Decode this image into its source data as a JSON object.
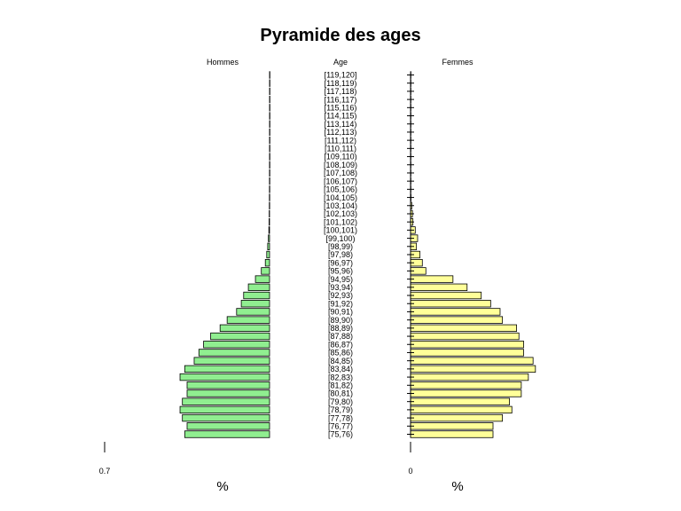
{
  "chart_data": {
    "type": "bar",
    "title": "Pyramide des ages",
    "headers": {
      "left": "Hommes",
      "center": "Age",
      "right": "Femmes"
    },
    "xlabel_left": "%",
    "xlabel_right": "%",
    "left_tick_label": "0.7",
    "right_tick_label": "0",
    "male_color": "#90EE90",
    "female_color": "#FFFF99",
    "categories": [
      "[75,76)",
      "[76,77)",
      "[77,78)",
      "[78,79)",
      "[79,80)",
      "[80,81)",
      "[81,82)",
      "[82,83)",
      "[83,84)",
      "[84,85)",
      "[85,86)",
      "[86,87)",
      "[87,88)",
      "[88,89)",
      "[89,90)",
      "[90,91)",
      "[91,92)",
      "[92,93)",
      "[93,94)",
      "[94,95)",
      "[95,96)",
      "[96,97)",
      "[97,98)",
      "[98,99)",
      "[99,100)",
      "[100,101)",
      "[101,102)",
      "[102,103)",
      "[103,104)",
      "[104,105)",
      "[105,106)",
      "[106,107)",
      "[107,108)",
      "[108,109)",
      "[109,110)",
      "[110,111)",
      "[111,112)",
      "[112,113)",
      "[113,114)",
      "[114,115)",
      "[115,116)",
      "[116,117)",
      "[117,118)",
      "[118,119)",
      "[119,120]"
    ],
    "series": [
      {
        "name": "Hommes",
        "values": [
          0.36,
          0.35,
          0.37,
          0.38,
          0.37,
          0.35,
          0.35,
          0.38,
          0.36,
          0.32,
          0.3,
          0.28,
          0.25,
          0.21,
          0.18,
          0.14,
          0.12,
          0.11,
          0.09,
          0.06,
          0.035,
          0.018,
          0.012,
          0.008,
          0.005,
          0.003,
          0.002,
          0.0015,
          0.001,
          0.0008,
          0.0006,
          0.0005,
          0.0004,
          0.0003,
          0.0002,
          0.0002,
          0.0002,
          0.0002,
          0.0001,
          0.0001,
          0.0001,
          0.0001,
          0.0001,
          0.0001,
          0.0001
        ]
      },
      {
        "name": "Femmes",
        "values": [
          0.35,
          0.35,
          0.39,
          0.43,
          0.42,
          0.47,
          0.47,
          0.5,
          0.53,
          0.52,
          0.48,
          0.48,
          0.46,
          0.45,
          0.39,
          0.38,
          0.34,
          0.3,
          0.24,
          0.18,
          0.065,
          0.05,
          0.04,
          0.025,
          0.03,
          0.02,
          0.01,
          0.008,
          0.005,
          0.002,
          0.0015,
          0.001,
          0.0008,
          0.0006,
          0.0005,
          0.0004,
          0.0003,
          0.0003,
          0.0002,
          0.0002,
          0.0002,
          0.0001,
          0.0001,
          0.0001,
          0.0001
        ]
      }
    ]
  }
}
